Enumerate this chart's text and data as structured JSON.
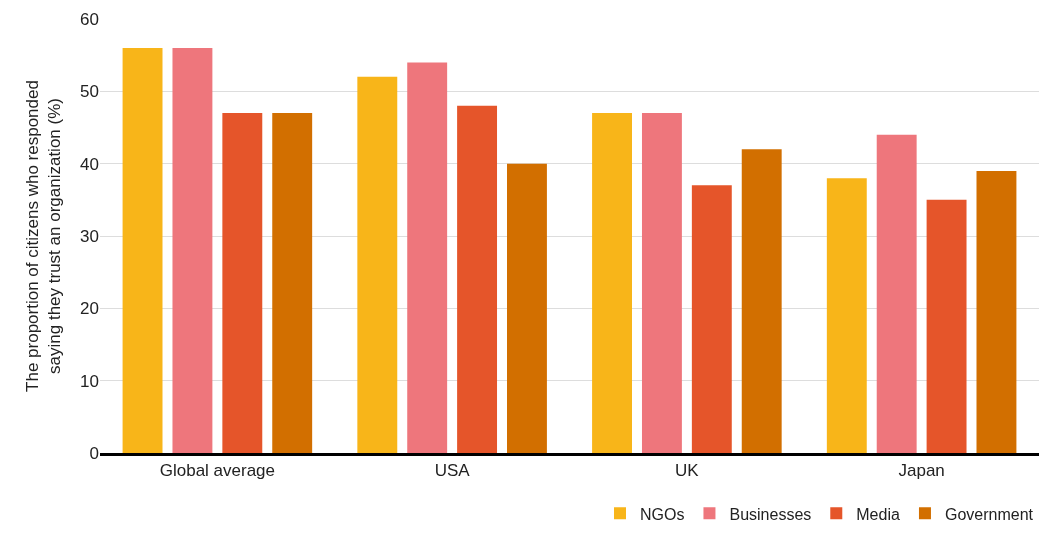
{
  "chart_data": {
    "type": "bar",
    "ylabel": "The proportion of citizens who responded\nsaying they trust an organization (%)",
    "categories": [
      "Global average",
      "USA",
      "UK",
      "Japan"
    ],
    "series": [
      {
        "name": "NGOs",
        "color": "#f8b519",
        "values": [
          56,
          52,
          47,
          38
        ]
      },
      {
        "name": "Businesses",
        "color": "#ee767c",
        "values": [
          56,
          54,
          47,
          44
        ]
      },
      {
        "name": "Media",
        "color": "#e5552a",
        "values": [
          47,
          48,
          37,
          35
        ]
      },
      {
        "name": "Government",
        "color": "#d26f00",
        "values": [
          47,
          40,
          42,
          39
        ]
      }
    ],
    "ylim": [
      0,
      60
    ],
    "yticks": [
      0,
      10,
      20,
      30,
      40,
      50,
      60
    ],
    "grid": "y",
    "legend": "bottom right"
  }
}
